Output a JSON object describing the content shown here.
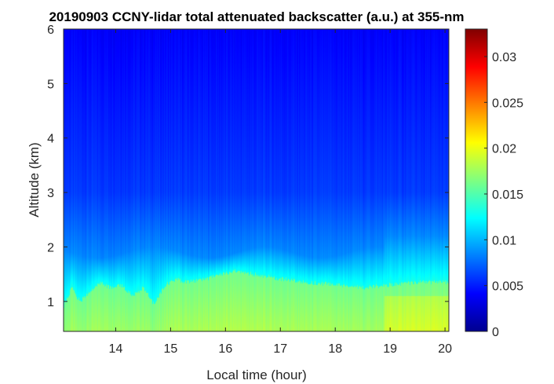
{
  "chart_data": {
    "type": "heatmap",
    "title": "20190903 CCNY-lidar total attenuated backscatter (a.u.) at 355-nm",
    "xlabel": "Local time (hour)",
    "ylabel": "Altitude (km)",
    "xlim": [
      13.05,
      20.07
    ],
    "ylim": [
      0.45,
      6.0
    ],
    "xticks": [
      14,
      15,
      16,
      17,
      18,
      19,
      20
    ],
    "xtick_labels": [
      "14",
      "15",
      "16",
      "17",
      "18",
      "19",
      "20"
    ],
    "yticks": [
      1,
      2,
      3,
      4,
      5,
      6
    ],
    "ytick_labels": [
      "1",
      "2",
      "3",
      "4",
      "5",
      "6"
    ],
    "colormap": "jet",
    "clim": [
      0,
      0.033
    ],
    "colorbar_ticks": [
      0,
      0.005,
      0.01,
      0.015,
      0.02,
      0.025,
      0.03
    ],
    "colorbar_labels": [
      "0",
      "0.005",
      "0.01",
      "0.015",
      "0.02",
      "0.025",
      "0.03"
    ],
    "boundary_layer_top_km": {
      "time": [
        13.05,
        13.2,
        13.35,
        13.5,
        13.7,
        13.9,
        14.1,
        14.3,
        14.5,
        14.7,
        14.9,
        15.1,
        15.3,
        15.6,
        15.9,
        16.2,
        16.5,
        16.8,
        17.1,
        17.5,
        18.0,
        18.5,
        19.0,
        19.5,
        20.07
      ],
      "altitude": [
        0.9,
        1.25,
        1.0,
        1.15,
        1.35,
        1.25,
        1.3,
        1.1,
        1.25,
        0.95,
        1.3,
        1.4,
        1.35,
        1.4,
        1.5,
        1.55,
        1.5,
        1.45,
        1.4,
        1.35,
        1.3,
        1.25,
        1.3,
        1.35,
        1.35
      ]
    },
    "representative_values": {
      "mixed_layer_below_1km": 0.016,
      "residual_layer_1_to_2km": 0.011,
      "free_troposphere_3km": 0.006,
      "free_troposphere_6km": 0.004
    }
  }
}
